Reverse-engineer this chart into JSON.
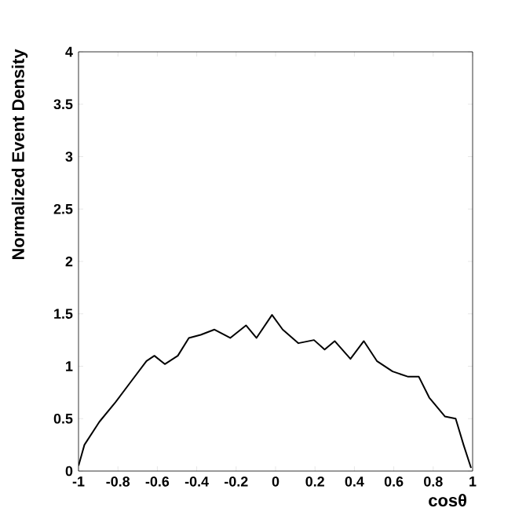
{
  "chart_data": {
    "type": "line",
    "xlabel": "cosθ",
    "ylabel": "Normalized Event Density",
    "x": [
      -1,
      -0.97,
      -0.894,
      -0.815,
      -0.735,
      -0.655,
      -0.615,
      -0.562,
      -0.496,
      -0.44,
      -0.38,
      -0.31,
      -0.23,
      -0.15,
      -0.097,
      -0.018,
      0.036,
      0.116,
      0.195,
      0.249,
      0.3,
      0.38,
      0.448,
      0.514,
      0.594,
      0.673,
      0.727,
      0.78,
      0.86,
      0.914,
      0.954,
      0.992
    ],
    "series": [
      {
        "color": "#000000",
        "values": [
          0.05,
          0.25,
          0.47,
          0.65,
          0.85,
          1.05,
          1.1,
          1.02,
          1.1,
          1.27,
          1.3,
          1.35,
          1.27,
          1.39,
          1.27,
          1.49,
          1.35,
          1.22,
          1.25,
          1.16,
          1.24,
          1.07,
          1.24,
          1.05,
          0.95,
          0.9,
          0.9,
          0.7,
          0.52,
          0.5,
          0.25,
          0.03
        ]
      }
    ],
    "xlim": [
      -1,
      1
    ],
    "ylim": [
      0,
      4
    ],
    "xticks": [
      -1,
      -0.8,
      -0.6,
      -0.4,
      -0.2,
      0,
      0.2,
      0.4,
      0.6,
      0.8,
      1
    ],
    "yticks": [
      0,
      0.5,
      1,
      1.5,
      2,
      2.5,
      3,
      3.5,
      4
    ],
    "grid": false,
    "marker": "none",
    "line_style": "solid"
  }
}
